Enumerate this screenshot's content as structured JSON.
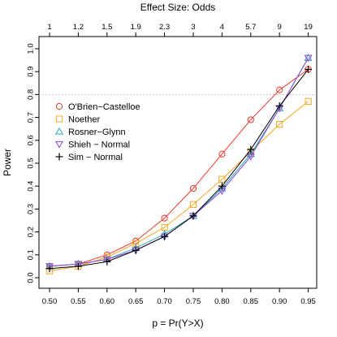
{
  "chart_data": {
    "type": "line",
    "top_axis_title": "Effect Size: Odds",
    "top_axis_ticks": [
      "1",
      "1.2",
      "1.5",
      "1.9",
      "2.3",
      "3",
      "4",
      "5.7",
      "9",
      "19"
    ],
    "xlabel": "p = Pr(Y>X)",
    "ylabel": "Power",
    "x": [
      0.5,
      0.55,
      0.6,
      0.65,
      0.7,
      0.75,
      0.8,
      0.85,
      0.9,
      0.95
    ],
    "x_tick_labels": [
      "0.50",
      "0.55",
      "0.60",
      "0.65",
      "0.70",
      "0.75",
      "0.80",
      "0.85",
      "0.90",
      "0.95"
    ],
    "ylim": [
      0,
      1
    ],
    "y_ticks": [
      0.0,
      0.1,
      0.2,
      0.3,
      0.4,
      0.5,
      0.6,
      0.7,
      0.8,
      0.9,
      1.0
    ],
    "y_tick_labels": [
      "0.0",
      "0.1",
      "0.2",
      "0.3",
      "0.4",
      "0.5",
      "0.6",
      "0.7",
      "0.8",
      "0.9",
      "1.0"
    ],
    "reference_line": 0.8,
    "legend_position": "top-left",
    "series": [
      {
        "name": "O'Brien−Castelloe",
        "marker": "circle",
        "color": "#E8392B",
        "values": [
          0.05,
          0.06,
          0.1,
          0.16,
          0.26,
          0.39,
          0.54,
          0.69,
          0.82,
          0.91
        ]
      },
      {
        "name": "Noether",
        "marker": "square",
        "color": "#F5A623",
        "values": [
          0.03,
          0.05,
          0.09,
          0.15,
          0.22,
          0.32,
          0.43,
          0.55,
          0.67,
          0.77
        ]
      },
      {
        "name": "Rosner−Glynn",
        "marker": "triangle-up",
        "color": "#2AA7B5",
        "values": [
          0.05,
          0.06,
          0.08,
          0.13,
          0.19,
          0.27,
          0.39,
          0.54,
          0.74,
          0.96
        ]
      },
      {
        "name": "Shieh − Normal",
        "marker": "triangle-down",
        "color": "#8E44D9",
        "values": [
          0.05,
          0.06,
          0.08,
          0.12,
          0.18,
          0.27,
          0.38,
          0.53,
          0.74,
          0.96
        ]
      },
      {
        "name": "Sim − Normal",
        "marker": "plus",
        "color": "#000000",
        "values": [
          0.04,
          0.05,
          0.07,
          0.12,
          0.18,
          0.27,
          0.4,
          0.56,
          0.75,
          0.91
        ]
      }
    ]
  }
}
